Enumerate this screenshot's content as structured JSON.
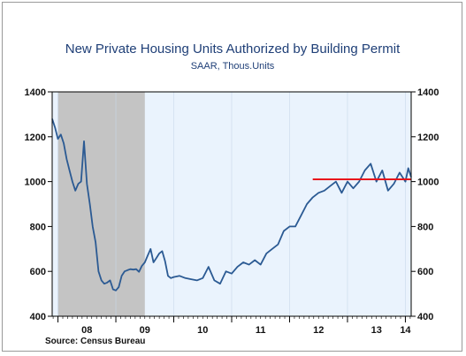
{
  "chart_data": {
    "type": "line",
    "title": "New Private Housing Units Authorized by Building Permit",
    "subtitle": "SAAR, Thous.Units",
    "source": "Source:  Census Bureau",
    "ylim": [
      400,
      1400
    ],
    "yticks": [
      "400",
      "600",
      "800",
      "1000",
      "1200",
      "1400"
    ],
    "xlim": [
      2007.9,
      2014.1
    ],
    "xticks": [
      {
        "label": "08",
        "center": 2008.5
      },
      {
        "label": "09",
        "center": 2009.5
      },
      {
        "label": "10",
        "center": 2010.5
      },
      {
        "label": "11",
        "center": 2011.5
      },
      {
        "label": "12",
        "center": 2012.5
      },
      {
        "label": "13",
        "center": 2013.5
      },
      {
        "label": "14",
        "center": 2014.0
      }
    ],
    "year_boundaries": [
      2008,
      2009,
      2010,
      2011,
      2012,
      2013,
      2014
    ],
    "recession": {
      "start": 2008.0,
      "end": 2009.5
    },
    "reference_line": {
      "value": 1010,
      "x_start": 2012.4,
      "x_end": 2014.1,
      "color": "#e8141c"
    },
    "colors": {
      "series": "#2b5a93",
      "plot_bg": "#eaf3fd",
      "recession": "#c4c4c4"
    },
    "series": [
      {
        "x": [
          2007.9,
          2007.95,
          2008.0,
          2008.05,
          2008.1,
          2008.15,
          2008.2,
          2008.25,
          2008.3,
          2008.35,
          2008.4,
          2008.45,
          2008.5,
          2008.55,
          2008.6,
          2008.65,
          2008.7,
          2008.75,
          2008.8,
          2008.85,
          2008.9,
          2008.95,
          2009.0,
          2009.05,
          2009.1,
          2009.15,
          2009.2,
          2009.25,
          2009.3,
          2009.35,
          2009.4,
          2009.45,
          2009.5,
          2009.55,
          2009.6,
          2009.65,
          2009.7,
          2009.75,
          2009.8,
          2009.85,
          2009.9,
          2009.95,
          2010.0,
          2010.1,
          2010.2,
          2010.3,
          2010.4,
          2010.5,
          2010.6,
          2010.7,
          2010.8,
          2010.9,
          2011.0,
          2011.1,
          2011.2,
          2011.3,
          2011.4,
          2011.5,
          2011.6,
          2011.7,
          2011.8,
          2011.9,
          2012.0,
          2012.1,
          2012.2,
          2012.3,
          2012.4,
          2012.5,
          2012.6,
          2012.7,
          2012.8,
          2012.9,
          2013.0,
          2013.1,
          2013.2,
          2013.3,
          2013.4,
          2013.5,
          2013.6,
          2013.7,
          2013.8,
          2013.9,
          2014.0,
          2014.05,
          2014.1
        ],
        "values": [
          1280,
          1240,
          1190,
          1210,
          1170,
          1100,
          1050,
          1000,
          960,
          990,
          1000,
          1180,
          990,
          900,
          800,
          730,
          600,
          560,
          545,
          550,
          560,
          520,
          515,
          530,
          580,
          600,
          605,
          610,
          608,
          610,
          598,
          625,
          640,
          670,
          700,
          640,
          660,
          680,
          690,
          645,
          580,
          570,
          575,
          580,
          570,
          565,
          560,
          570,
          620,
          560,
          545,
          600,
          590,
          620,
          640,
          630,
          650,
          630,
          680,
          700,
          720,
          780,
          800,
          800,
          850,
          900,
          930,
          950,
          960,
          980,
          1000,
          950,
          1000,
          970,
          1000,
          1050,
          1080,
          1000,
          1050,
          960,
          990,
          1040,
          1000,
          1060,
          1020
        ]
      }
    ]
  }
}
